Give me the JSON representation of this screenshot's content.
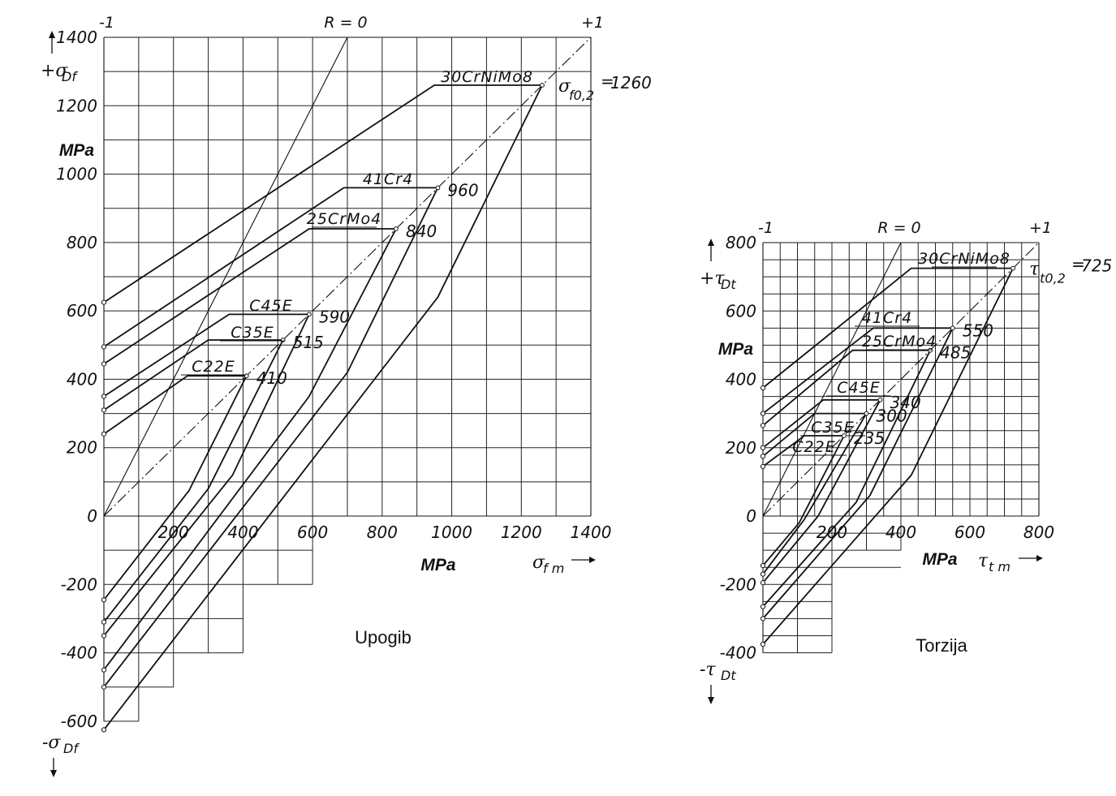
{
  "chart_data": [
    {
      "type": "line",
      "title": "Upogib",
      "xlabel_unit": "MPa",
      "xlabel_symbol": "σ",
      "xlabel_sub": "f m",
      "ylabel_unit": "MPa",
      "ylabel_pos_symbol": "+σ",
      "ylabel_pos_sub": "Df",
      "ylabel_neg_symbol": "-σ",
      "ylabel_neg_sub": "Df",
      "xlim": [
        0,
        1400
      ],
      "ylim": [
        -600,
        1400
      ],
      "x_ticks": [
        "200",
        "400",
        "600",
        "800",
        "1000",
        "1200",
        "1400"
      ],
      "y_ticks": [
        "1400",
        "1200",
        "1000",
        "800",
        "600",
        "400",
        "200",
        "0",
        "-200",
        "-400",
        "-600"
      ],
      "ratio_labels": {
        "left": "-1",
        "mid": "R = 0",
        "right": "+1"
      },
      "yield_symbol": "σ",
      "yield_sub": "f0,2",
      "series": [
        {
          "name": "30CrNiMo8",
          "value_label": "1260",
          "yield_prefix": true,
          "upper": [
            [
              0,
              625
            ],
            [
              950,
              1260
            ],
            [
              1260,
              1260
            ]
          ],
          "lower": [
            [
              1260,
              1260
            ],
            [
              960,
              640
            ],
            [
              0,
              -625
            ]
          ]
        },
        {
          "name": "41Cr4",
          "value_label": "960",
          "upper": [
            [
              0,
              495
            ],
            [
              690,
              960
            ],
            [
              960,
              960
            ]
          ],
          "lower": [
            [
              960,
              960
            ],
            [
              700,
              420
            ],
            [
              0,
              -500
            ]
          ]
        },
        {
          "name": "25CrMo4",
          "value_label": "840",
          "upper": [
            [
              0,
              445
            ],
            [
              590,
              840
            ],
            [
              840,
              840
            ]
          ],
          "lower": [
            [
              840,
              840
            ],
            [
              590,
              350
            ],
            [
              0,
              -450
            ]
          ]
        },
        {
          "name": "C45E",
          "value_label": "590",
          "upper": [
            [
              0,
              350
            ],
            [
              360,
              590
            ],
            [
              590,
              590
            ]
          ],
          "lower": [
            [
              590,
              590
            ],
            [
              370,
              120
            ],
            [
              0,
              -350
            ]
          ]
        },
        {
          "name": "C35E",
          "value_label": "515",
          "upper": [
            [
              0,
              310
            ],
            [
              300,
              515
            ],
            [
              515,
              515
            ]
          ],
          "lower": [
            [
              515,
              515
            ],
            [
              300,
              80
            ],
            [
              0,
              -310
            ]
          ]
        },
        {
          "name": "C22E",
          "value_label": "410",
          "upper": [
            [
              0,
              240
            ],
            [
              240,
              410
            ],
            [
              410,
              410
            ]
          ],
          "lower": [
            [
              410,
              410
            ],
            [
              245,
              75
            ],
            [
              0,
              -245
            ]
          ]
        }
      ]
    },
    {
      "type": "line",
      "title": "Torzija",
      "xlabel_unit": "MPa",
      "xlabel_symbol": "τ",
      "xlabel_sub": "t m",
      "ylabel_unit": "MPa",
      "ylabel_pos_symbol": "+τ",
      "ylabel_pos_sub": "Dt",
      "ylabel_neg_symbol": "-τ",
      "ylabel_neg_sub": "Dt",
      "xlim": [
        0,
        800
      ],
      "ylim": [
        -400,
        800
      ],
      "x_ticks": [
        "200",
        "400",
        "600",
        "800"
      ],
      "y_ticks": [
        "800",
        "600",
        "400",
        "200",
        "0",
        "-200",
        "-400"
      ],
      "ratio_labels": {
        "left": "-1",
        "mid": "R = 0",
        "right": "+1"
      },
      "yield_symbol": "τ",
      "yield_sub": "t0,2",
      "series": [
        {
          "name": "30CrNiMo8",
          "value_label": "725",
          "yield_prefix": true,
          "upper": [
            [
              0,
              375
            ],
            [
              430,
              725
            ],
            [
              725,
              725
            ]
          ],
          "lower": [
            [
              725,
              725
            ],
            [
              430,
              120
            ],
            [
              0,
              -375
            ]
          ]
        },
        {
          "name": "41Cr4",
          "value_label": "550",
          "upper": [
            [
              0,
              300
            ],
            [
              320,
              550
            ],
            [
              550,
              550
            ]
          ],
          "lower": [
            [
              550,
              550
            ],
            [
              310,
              60
            ],
            [
              0,
              -300
            ]
          ]
        },
        {
          "name": "25CrMo4",
          "value_label": "485",
          "upper": [
            [
              0,
              265
            ],
            [
              260,
              485
            ],
            [
              485,
              485
            ]
          ],
          "lower": [
            [
              485,
              485
            ],
            [
              270,
              40
            ],
            [
              0,
              -265
            ]
          ]
        },
        {
          "name": "C45E",
          "value_label": "340",
          "upper": [
            [
              0,
              200
            ],
            [
              175,
              340
            ],
            [
              340,
              340
            ]
          ],
          "lower": [
            [
              340,
              340
            ],
            [
              160,
              0
            ],
            [
              0,
              -195
            ]
          ]
        },
        {
          "name": "C35E",
          "value_label": "300",
          "upper": [
            [
              0,
              175
            ],
            [
              150,
              300
            ],
            [
              300,
              300
            ]
          ],
          "lower": [
            [
              300,
              300
            ],
            [
              120,
              -10
            ],
            [
              0,
              -170
            ]
          ]
        },
        {
          "name": "C22E",
          "value_label": "235",
          "upper": [
            [
              0,
              145
            ],
            [
              120,
              235
            ],
            [
              235,
              235
            ]
          ],
          "lower": [
            [
              235,
              235
            ],
            [
              105,
              -20
            ],
            [
              0,
              -145
            ]
          ]
        }
      ]
    }
  ]
}
